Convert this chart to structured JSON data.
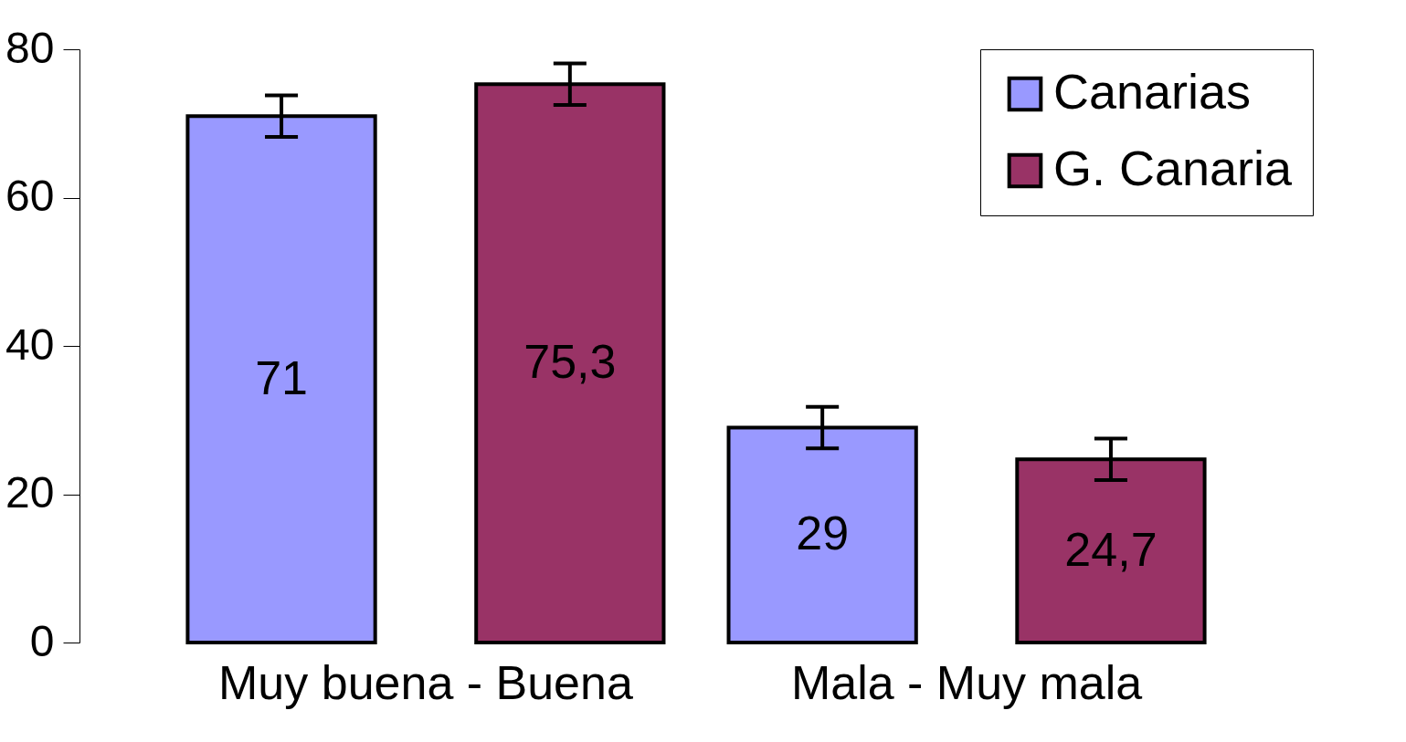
{
  "chart_data": {
    "type": "bar",
    "categories": [
      "Muy buena - Buena",
      "Mala - Muy mala"
    ],
    "series": [
      {
        "name": "Canarias",
        "color": "#9999ff",
        "values": [
          71,
          29
        ],
        "errors": [
          2.8,
          2.8
        ],
        "value_labels": [
          "71",
          "29"
        ]
      },
      {
        "name": "G. Canaria",
        "color": "#993366",
        "values": [
          75.3,
          24.7
        ],
        "errors": [
          2.8,
          2.8
        ],
        "value_labels": [
          "75,3",
          "24,7"
        ]
      }
    ],
    "ylim": [
      0,
      80
    ],
    "yticks": [
      0,
      20,
      40,
      60,
      80
    ],
    "grid": false,
    "legend": "top right"
  }
}
